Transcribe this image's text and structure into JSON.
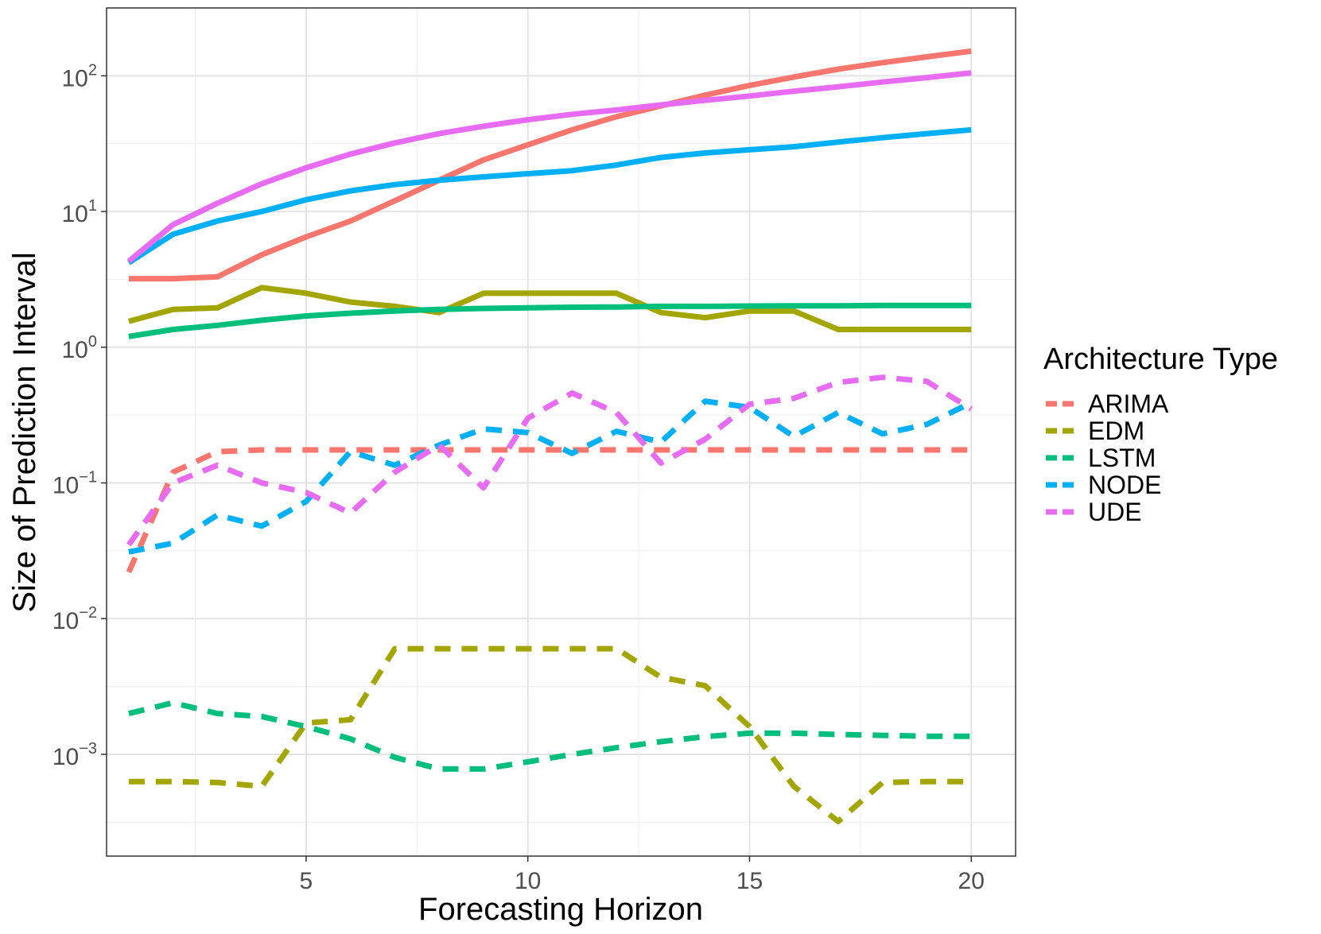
{
  "chart_data": {
    "type": "line",
    "title": "",
    "xlabel": "Forecasting Horizon",
    "ylabel": "Size of Prediction Interval",
    "yscale": "log10",
    "xlim": [
      0.5,
      21
    ],
    "ylim_log10": [
      -3.75,
      2.5
    ],
    "grid": true,
    "x_ticks": [
      5,
      10,
      15,
      20
    ],
    "x_tick_labels": [
      "5",
      "10",
      "15",
      "20"
    ],
    "y_ticks": [
      {
        "base": "10",
        "exp": "2",
        "value": 100
      },
      {
        "base": "10",
        "exp": "1",
        "value": 10
      },
      {
        "base": "10",
        "exp": "0",
        "value": 1
      },
      {
        "base": "10",
        "exp": "−1",
        "value": 0.1
      },
      {
        "base": "10",
        "exp": "−2",
        "value": 0.01
      },
      {
        "base": "10",
        "exp": "−3",
        "value": 0.001
      }
    ],
    "legend": {
      "title": "Architecture Type",
      "position": "right"
    },
    "x": [
      1,
      2,
      3,
      4,
      5,
      6,
      7,
      8,
      9,
      10,
      11,
      12,
      13,
      14,
      15,
      16,
      17,
      18,
      19,
      20
    ],
    "series": [
      {
        "name": "ARIMA",
        "color": "#F8766D",
        "style": "solid",
        "values": [
          3.2,
          3.2,
          3.3,
          4.8,
          6.5,
          8.5,
          12,
          17,
          24,
          31,
          40,
          50,
          60,
          72,
          85,
          98,
          112,
          125,
          138,
          152
        ]
      },
      {
        "name": "EDM",
        "color": "#A3A500",
        "style": "solid",
        "values": [
          1.55,
          1.9,
          1.95,
          2.75,
          2.5,
          2.15,
          2.0,
          1.8,
          2.5,
          2.5,
          2.5,
          2.5,
          1.8,
          1.65,
          1.85,
          1.85,
          1.35,
          1.35,
          1.35,
          1.35
        ]
      },
      {
        "name": "LSTM",
        "color": "#00BF7D",
        "style": "solid",
        "values": [
          1.2,
          1.35,
          1.45,
          1.58,
          1.7,
          1.78,
          1.85,
          1.9,
          1.93,
          1.95,
          1.97,
          1.98,
          2.0,
          2.0,
          2.01,
          2.02,
          2.02,
          2.03,
          2.03,
          2.03
        ]
      },
      {
        "name": "NODE",
        "color": "#00B0F6",
        "style": "solid",
        "values": [
          4.2,
          6.8,
          8.5,
          10,
          12.2,
          14.2,
          15.8,
          17,
          18,
          19,
          20,
          22,
          25,
          27,
          28.5,
          30,
          32.5,
          35,
          37.5,
          40
        ]
      },
      {
        "name": "UDE",
        "color": "#E76BF3",
        "style": "solid",
        "values": [
          4.3,
          8,
          11.5,
          16,
          21,
          26.5,
          32,
          37.5,
          42.5,
          47.5,
          52,
          56,
          61,
          66,
          71,
          77,
          83,
          90,
          97,
          105
        ]
      },
      {
        "name": "ARIMA",
        "color": "#F8766D",
        "style": "dashed",
        "values": [
          0.022,
          0.12,
          0.17,
          0.175,
          0.175,
          0.175,
          0.175,
          0.175,
          0.175,
          0.175,
          0.175,
          0.175,
          0.175,
          0.175,
          0.175,
          0.175,
          0.175,
          0.175,
          0.175,
          0.175
        ]
      },
      {
        "name": "EDM",
        "color": "#A3A500",
        "style": "dashed",
        "values": [
          0.00063,
          0.00063,
          0.00062,
          0.00058,
          0.0017,
          0.0018,
          0.006,
          0.006,
          0.006,
          0.006,
          0.006,
          0.006,
          0.0037,
          0.0032,
          0.0016,
          0.00058,
          0.00032,
          0.00062,
          0.00063,
          0.00063
        ]
      },
      {
        "name": "LSTM",
        "color": "#00BF7D",
        "style": "dashed",
        "values": [
          0.002,
          0.0024,
          0.002,
          0.0019,
          0.0016,
          0.0013,
          0.00095,
          0.00078,
          0.00078,
          0.00088,
          0.001,
          0.00112,
          0.00124,
          0.00135,
          0.00143,
          0.00143,
          0.0014,
          0.00138,
          0.00136,
          0.00136
        ]
      },
      {
        "name": "NODE",
        "color": "#00B0F6",
        "style": "dashed",
        "values": [
          0.031,
          0.036,
          0.058,
          0.048,
          0.073,
          0.17,
          0.135,
          0.19,
          0.25,
          0.235,
          0.165,
          0.24,
          0.2,
          0.4,
          0.36,
          0.22,
          0.33,
          0.23,
          0.27,
          0.39
        ]
      },
      {
        "name": "UDE",
        "color": "#E76BF3",
        "style": "dashed",
        "values": [
          0.035,
          0.1,
          0.135,
          0.1,
          0.085,
          0.06,
          0.12,
          0.19,
          0.092,
          0.3,
          0.46,
          0.33,
          0.14,
          0.21,
          0.38,
          0.42,
          0.55,
          0.6,
          0.56,
          0.35
        ]
      }
    ]
  }
}
